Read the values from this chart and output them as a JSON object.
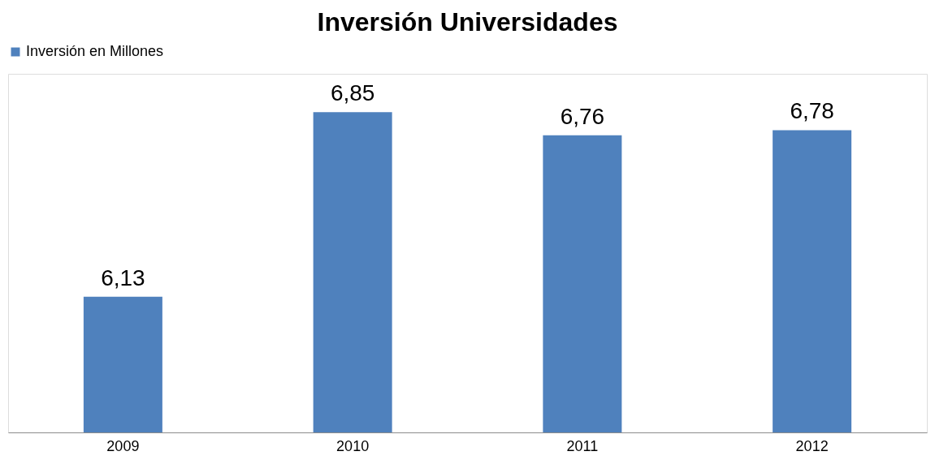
{
  "chart_data": {
    "type": "bar",
    "title": "Inversión Universidades",
    "categories": [
      "2009",
      "2010",
      "2011",
      "2012"
    ],
    "series": [
      {
        "name": "Inversión en Millones",
        "color": "#4f81bd",
        "values": [
          6.13,
          6.85,
          6.76,
          6.78
        ],
        "value_labels": [
          "6,13",
          "6,85",
          "6,76",
          "6,78"
        ]
      }
    ],
    "ylim": [
      5.6,
      7.0
    ],
    "tick_labels": "x",
    "grid": false,
    "legend": "top"
  }
}
